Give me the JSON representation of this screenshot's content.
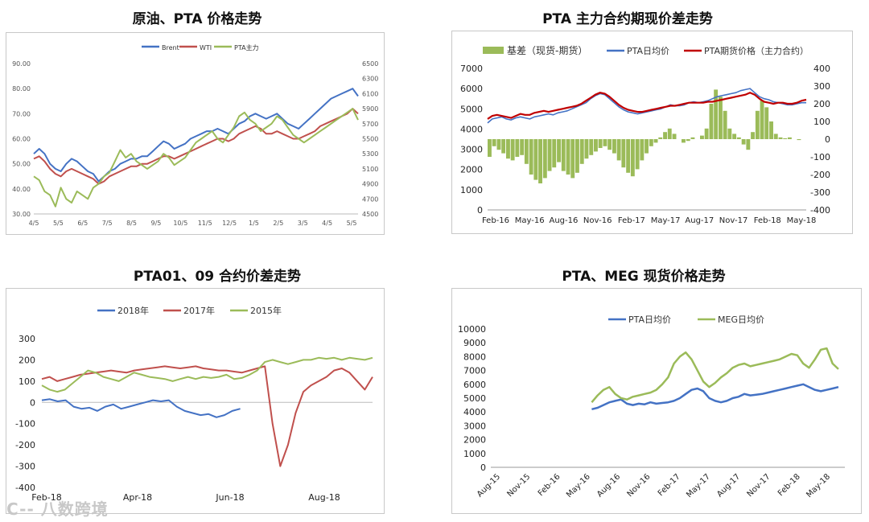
{
  "watermark": "C-- 八数跨境",
  "chart_data": [
    {
      "id": "c1",
      "type": "line",
      "title": "原油、PTA 价格走势",
      "legend": [
        "Brent",
        "WTI",
        "PTA主力"
      ],
      "legend_position": "top-center",
      "colors": [
        "#4472c4",
        "#c0504d",
        "#9bbb59"
      ],
      "x_labels": [
        "4/5",
        "5/5",
        "6/5",
        "7/5",
        "8/5",
        "9/5",
        "10/5",
        "11/5",
        "12/5",
        "1/5",
        "2/5",
        "3/5",
        "4/5",
        "5/5"
      ],
      "ylim_left": [
        30,
        90
      ],
      "y_ticks_left": [
        "30.00",
        "40.00",
        "50.00",
        "60.00",
        "70.00",
        "80.00",
        "90.00"
      ],
      "ylim_right": [
        4500,
        6500
      ],
      "y_ticks_right": [
        "4500",
        "4700",
        "4900",
        "5100",
        "5300",
        "5500",
        "5700",
        "5900",
        "6100",
        "6300",
        "6500"
      ],
      "series": [
        {
          "name": "Brent",
          "axis": "left",
          "values": [
            54,
            56,
            54,
            50,
            48,
            47,
            50,
            52,
            51,
            49,
            47,
            46,
            43,
            45,
            47,
            48,
            50,
            51,
            52,
            52,
            53,
            53,
            55,
            57,
            59,
            58,
            56,
            57,
            58,
            60,
            61,
            62,
            63,
            63,
            64,
            63,
            62,
            64,
            66,
            67,
            69,
            70,
            69,
            68,
            69,
            70,
            68,
            66,
            65,
            64,
            66,
            68,
            70,
            72,
            74,
            76,
            77,
            78,
            79,
            80,
            77
          ]
        },
        {
          "name": "WTI",
          "axis": "left",
          "values": [
            52,
            53,
            51,
            48,
            46,
            45,
            47,
            48,
            47,
            46,
            45,
            44,
            42,
            43,
            45,
            46,
            47,
            48,
            49,
            49,
            50,
            50,
            51,
            52,
            53,
            53,
            52,
            53,
            54,
            55,
            56,
            57,
            58,
            59,
            60,
            60,
            59,
            60,
            62,
            63,
            64,
            65,
            64,
            62,
            62,
            63,
            62,
            61,
            60,
            60,
            61,
            62,
            63,
            65,
            66,
            67,
            68,
            69,
            70,
            72,
            70
          ]
        },
        {
          "name": "PTA主力",
          "axis": "right",
          "values": [
            5000,
            4950,
            4800,
            4750,
            4600,
            4850,
            4700,
            4650,
            4800,
            4750,
            4700,
            4850,
            4900,
            5000,
            5050,
            5200,
            5350,
            5250,
            5300,
            5200,
            5150,
            5100,
            5150,
            5200,
            5300,
            5250,
            5150,
            5200,
            5250,
            5350,
            5450,
            5500,
            5550,
            5600,
            5500,
            5450,
            5550,
            5650,
            5800,
            5850,
            5750,
            5700,
            5600,
            5650,
            5700,
            5800,
            5750,
            5650,
            5550,
            5500,
            5450,
            5500,
            5550,
            5600,
            5650,
            5700,
            5750,
            5800,
            5850,
            5900,
            5750
          ]
        }
      ]
    },
    {
      "id": "c2",
      "type": "bar+line",
      "title": "PTA 主力合约期现价差走势",
      "legend": [
        "基差（现货-期货）",
        "PTA日均价",
        "PTA期货价格（主力合约）"
      ],
      "legend_position": "top",
      "colors": [
        "#9bbb59",
        "#4472c4",
        "#c00000"
      ],
      "x_labels": [
        "Feb-16",
        "May-16",
        "Aug-16",
        "Nov-16",
        "Feb-17",
        "May-17",
        "Aug-17",
        "Nov-17",
        "Feb-18",
        "May-18"
      ],
      "ylim_left": [
        0,
        7000
      ],
      "y_ticks_left": [
        "0",
        "1000",
        "2000",
        "3000",
        "4000",
        "5000",
        "6000",
        "7000"
      ],
      "ylim_right": [
        -400,
        400
      ],
      "y_ticks_right": [
        "-400",
        "-300",
        "-200",
        "-100",
        "0",
        "100",
        "200",
        "300",
        "400"
      ],
      "series": [
        {
          "name": "基差（现货-期货）",
          "axis": "right",
          "values": [
            -100,
            -40,
            -60,
            -80,
            -110,
            -120,
            -100,
            -90,
            -140,
            -200,
            -230,
            -250,
            -220,
            -180,
            -160,
            -130,
            -180,
            -200,
            -220,
            -190,
            -140,
            -110,
            -90,
            -70,
            -50,
            -40,
            -60,
            -80,
            -120,
            -160,
            -190,
            -210,
            -170,
            -120,
            -80,
            -40,
            -20,
            10,
            40,
            60,
            30,
            0,
            -20,
            -10,
            10,
            0,
            20,
            60,
            200,
            280,
            240,
            160,
            60,
            30,
            10,
            -30,
            -60,
            40,
            160,
            220,
            180,
            100,
            30,
            10,
            5,
            10,
            0,
            -5,
            0
          ]
        },
        {
          "name": "PTA日均价",
          "axis": "left",
          "values": [
            4300,
            4500,
            4550,
            4600,
            4500,
            4450,
            4550,
            4600,
            4550,
            4500,
            4600,
            4650,
            4700,
            4750,
            4700,
            4800,
            4850,
            4900,
            5000,
            5100,
            5200,
            5300,
            5500,
            5650,
            5750,
            5700,
            5500,
            5300,
            5100,
            4950,
            4850,
            4800,
            4750,
            4800,
            4850,
            4900,
            4950,
            5000,
            5100,
            5200,
            5150,
            5150,
            5200,
            5300,
            5350,
            5300,
            5350,
            5400,
            5500,
            5600,
            5650,
            5700,
            5750,
            5800,
            5900,
            5950,
            6000,
            5800,
            5600,
            5500,
            5450,
            5350,
            5300,
            5250,
            5200,
            5200,
            5250,
            5300,
            5300
          ]
        },
        {
          "name": "PTA期货价格（主力合约）",
          "axis": "left",
          "values": [
            4500,
            4650,
            4700,
            4650,
            4600,
            4550,
            4650,
            4750,
            4700,
            4700,
            4800,
            4850,
            4900,
            4850,
            4900,
            4950,
            5000,
            5050,
            5100,
            5150,
            5250,
            5400,
            5550,
            5700,
            5800,
            5750,
            5600,
            5400,
            5200,
            5050,
            4950,
            4900,
            4850,
            4850,
            4900,
            4950,
            5000,
            5050,
            5100,
            5150,
            5150,
            5200,
            5250,
            5300,
            5300,
            5300,
            5300,
            5350,
            5350,
            5400,
            5450,
            5500,
            5550,
            5600,
            5650,
            5700,
            5800,
            5700,
            5500,
            5350,
            5300,
            5250,
            5300,
            5300,
            5250,
            5250,
            5300,
            5400,
            5450
          ]
        }
      ]
    },
    {
      "id": "c3",
      "type": "line",
      "title": "PTA01、09 合约价差走势",
      "legend": [
        "2018年",
        "2017年",
        "2015年"
      ],
      "legend_position": "top-left",
      "colors": [
        "#4472c4",
        "#c0504d",
        "#9bbb59"
      ],
      "x_labels": [
        "Feb-18",
        "Apr-18",
        "Jun-18",
        "Aug-18"
      ],
      "ylim": [
        -400,
        300
      ],
      "y_ticks": [
        "-400",
        "-300",
        "-200",
        "-100",
        "0",
        "100",
        "200",
        "300"
      ],
      "series": [
        {
          "name": "2018年",
          "start": 0,
          "values": [
            10,
            15,
            5,
            10,
            -20,
            -30,
            -25,
            -40,
            -20,
            -10,
            -30,
            -20,
            -10,
            0,
            10,
            5,
            10,
            -20,
            -40,
            -50,
            -60,
            -55,
            -70,
            -60,
            -40,
            -30
          ]
        },
        {
          "name": "2017年",
          "start": 0,
          "values": [
            110,
            120,
            100,
            110,
            120,
            130,
            135,
            140,
            145,
            150,
            145,
            140,
            150,
            155,
            160,
            165,
            170,
            165,
            160,
            165,
            170,
            160,
            155,
            150,
            150,
            145,
            140,
            150,
            160,
            170,
            -100,
            -300,
            -200,
            -50,
            50,
            80,
            100,
            120,
            150,
            160,
            140,
            100,
            60,
            120
          ]
        },
        {
          "name": "2015年",
          "start": 0,
          "values": [
            80,
            60,
            50,
            60,
            90,
            120,
            150,
            140,
            120,
            110,
            100,
            120,
            140,
            130,
            120,
            115,
            110,
            100,
            110,
            120,
            110,
            120,
            115,
            120,
            130,
            110,
            115,
            130,
            150,
            190,
            200,
            190,
            180,
            190,
            200,
            200,
            210,
            205,
            210,
            200,
            210,
            205,
            200,
            210
          ]
        }
      ]
    },
    {
      "id": "c4",
      "type": "line",
      "title": "PTA、MEG 现货价格走势",
      "legend": [
        "PTA日均价",
        "MEG日均价"
      ],
      "legend_position": "top-center",
      "colors": [
        "#4472c4",
        "#9bbb59"
      ],
      "x_labels": [
        "Aug-15",
        "Nov-15",
        "Feb-16",
        "May-16",
        "Aug-16",
        "Nov-16",
        "Feb-17",
        "May-17",
        "Aug-17",
        "Nov-17",
        "Feb-18",
        "May-18"
      ],
      "ylim": [
        0,
        10000
      ],
      "y_ticks": [
        "0",
        "1000",
        "2000",
        "3000",
        "4000",
        "5000",
        "6000",
        "7000",
        "8000",
        "9000",
        "10000"
      ],
      "series": [
        {
          "name": "PTA日均价",
          "values": [
            4200,
            4300,
            4500,
            4700,
            4800,
            4900,
            4600,
            4500,
            4600,
            4550,
            4700,
            4600,
            4650,
            4700,
            4800,
            5000,
            5300,
            5600,
            5700,
            5500,
            5000,
            4800,
            4700,
            4800,
            5000,
            5100,
            5300,
            5200,
            5250,
            5300,
            5400,
            5500,
            5600,
            5700,
            5800,
            5900,
            6000,
            5800,
            5600,
            5500,
            5600,
            5700,
            5800
          ]
        },
        {
          "name": "MEG日均价",
          "values": [
            4700,
            5200,
            5600,
            5800,
            5300,
            5000,
            4900,
            5100,
            5200,
            5300,
            5400,
            5600,
            6000,
            6500,
            7500,
            8000,
            8300,
            7800,
            7000,
            6200,
            5800,
            6100,
            6500,
            6800,
            7200,
            7400,
            7500,
            7300,
            7400,
            7500,
            7600,
            7700,
            7800,
            8000,
            8200,
            8100,
            7500,
            7200,
            7800,
            8500,
            8600,
            7500,
            7100
          ]
        }
      ]
    }
  ]
}
